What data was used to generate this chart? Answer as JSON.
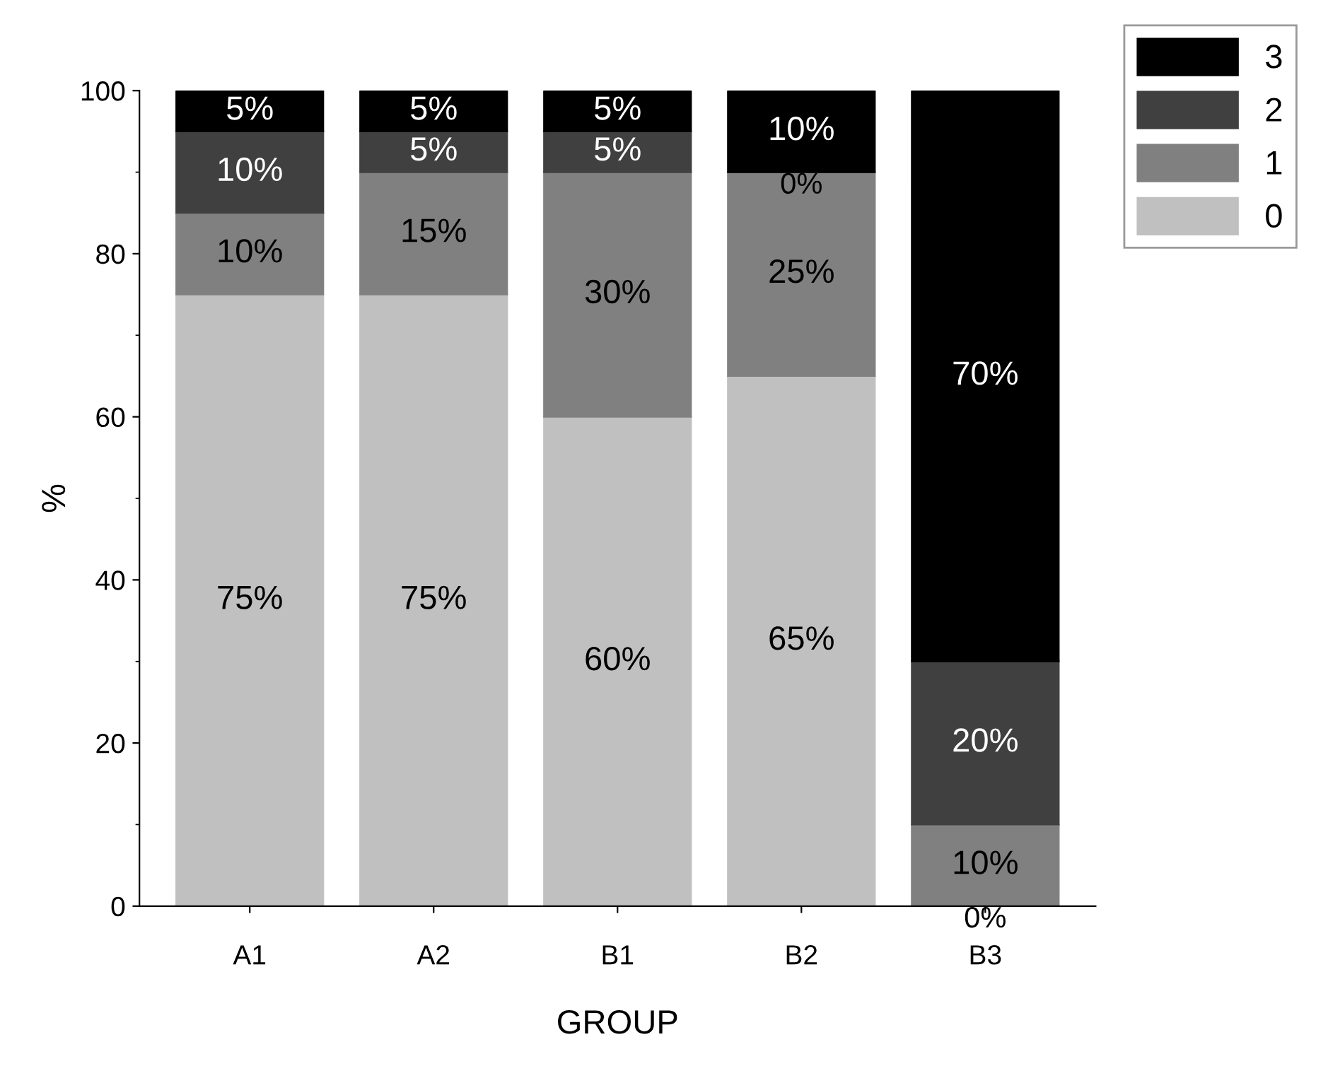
{
  "chart_data": {
    "type": "bar",
    "stacked": true,
    "xlabel": "GROUP",
    "ylabel": "%",
    "categories": [
      "A1",
      "A2",
      "B1",
      "B2",
      "B3"
    ],
    "series": [
      {
        "name": "0",
        "color": "#c0c0c0",
        "values": [
          75,
          75,
          60,
          65,
          0
        ],
        "value_labels": [
          "75%",
          "75%",
          "60%",
          "65%",
          "0%"
        ]
      },
      {
        "name": "1",
        "color": "#808080",
        "values": [
          10,
          15,
          30,
          25,
          10
        ],
        "value_labels": [
          "10%",
          "15%",
          "30%",
          "25%",
          "10%"
        ]
      },
      {
        "name": "2",
        "color": "#404040",
        "values": [
          10,
          5,
          5,
          0,
          20
        ],
        "value_labels": [
          "10%",
          "5%",
          "5%",
          "0%",
          "20%"
        ]
      },
      {
        "name": "3",
        "color": "#000000",
        "values": [
          5,
          5,
          5,
          10,
          70
        ],
        "value_labels": [
          "5%",
          "5%",
          "5%",
          "10%",
          "70%"
        ]
      }
    ],
    "ylim": [
      0,
      100
    ],
    "yticks": [
      0,
      20,
      40,
      60,
      80,
      100
    ],
    "grid": false,
    "legend": "top right"
  }
}
